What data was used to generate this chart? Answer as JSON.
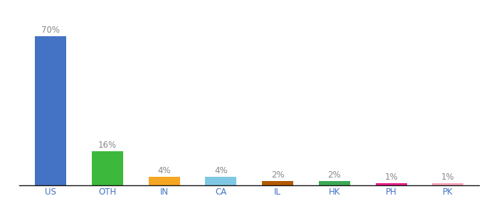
{
  "categories": [
    "US",
    "OTH",
    "IN",
    "CA",
    "IL",
    "HK",
    "PH",
    "PK"
  ],
  "values": [
    70,
    16,
    4,
    4,
    2,
    2,
    1,
    1
  ],
  "bar_colors": [
    "#4472c4",
    "#3cb93c",
    "#f5a623",
    "#7ec8e3",
    "#b35900",
    "#3daa55",
    "#e91e8c",
    "#f4a7b9"
  ],
  "labels": [
    "70%",
    "16%",
    "4%",
    "4%",
    "2%",
    "2%",
    "1%",
    "1%"
  ],
  "ylim": [
    0,
    80
  ],
  "background_color": "#ffffff",
  "label_fontsize": 8.5,
  "tick_fontsize": 8.5,
  "label_color": "#888888",
  "tick_color": "#4472c4",
  "bar_width": 0.55
}
